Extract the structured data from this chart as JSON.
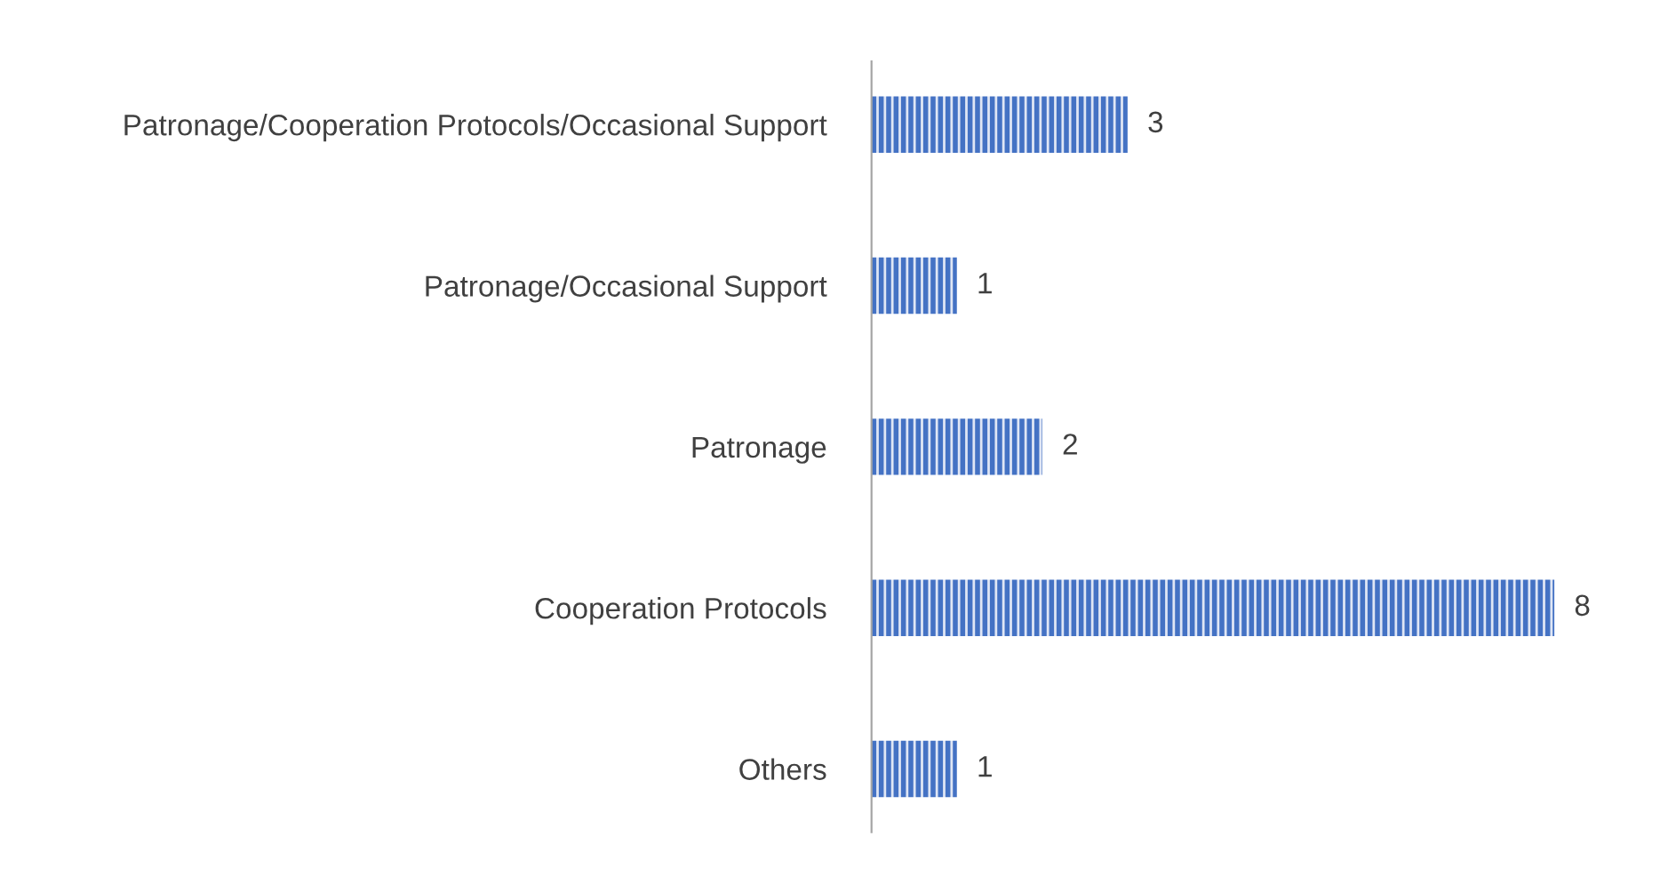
{
  "chart_data": {
    "type": "bar",
    "orientation": "horizontal",
    "categories": [
      "Patronage/Cooperation Protocols/Occasional Support",
      "Patronage/Occasional Support",
      "Patronage",
      "Cooperation Protocols",
      "Others"
    ],
    "values": [
      3,
      1,
      2,
      8,
      1
    ],
    "color": "#4472c4",
    "data_labels": true,
    "grid": false,
    "legend": false
  }
}
